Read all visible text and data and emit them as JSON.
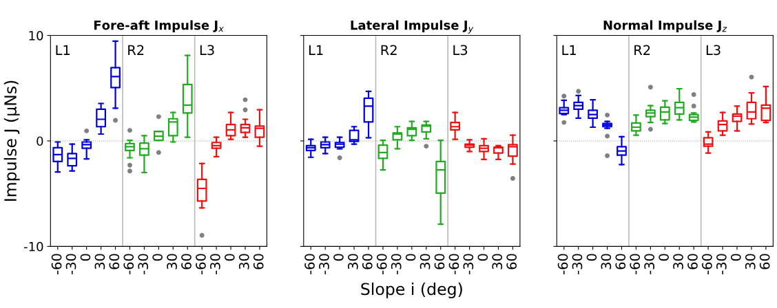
{
  "chart_data": [
    {
      "type": "box",
      "title": "Fore-aft Impulse J$_{x}$",
      "annotations": [
        "L1",
        "R2",
        "L3"
      ],
      "ylabel": "Impulse J (µNs)",
      "ylim": [
        -10,
        10
      ],
      "yticks": [
        -10,
        0,
        10
      ],
      "grid": false,
      "categories": [
        "-60",
        "-30",
        "0",
        "30",
        "60",
        "-60",
        "-30",
        "0",
        "30",
        "60",
        "-60",
        "-30",
        "0",
        "30",
        "60"
      ],
      "ref_lines": [
        {
          "axis": "y",
          "value": 0,
          "color": "#999999",
          "line_style": "dotted"
        }
      ],
      "series": [
        {
          "color": "#0000dd",
          "boxes": [
            {
              "low": -2.95,
              "q1": -1.95,
              "median": -1.3,
              "q3": -0.65,
              "high": -0.1
            },
            {
              "low": -2.85,
              "q1": -2.35,
              "median": -1.65,
              "q3": -1.2,
              "high": -0.3
            },
            {
              "low": -1.7,
              "q1": -0.7,
              "median": -0.35,
              "q3": -0.1,
              "high": 0.1,
              "outliers": [
                0.95
              ]
            },
            {
              "low": 0.65,
              "q1": 1.35,
              "median": 2.05,
              "q3": 3.0,
              "high": 3.55
            },
            {
              "low": 3.1,
              "q1": 5.05,
              "median": 6.1,
              "q3": 6.95,
              "high": 9.45,
              "outliers": [
                1.95
              ]
            },
            null,
            null,
            null,
            null,
            null,
            null,
            null,
            null,
            null,
            null
          ]
        },
        {
          "color": "#22aa22",
          "boxes": [
            null,
            null,
            null,
            null,
            null,
            {
              "low": -1.6,
              "q1": -0.9,
              "median": -0.55,
              "q3": -0.25,
              "high": 0.05,
              "outliers": [
                1.0,
                -2.3,
                -2.85
              ]
            },
            {
              "low": -3.0,
              "q1": -1.35,
              "median": -0.75,
              "q3": -0.2,
              "high": 0.5
            },
            {
              "low": 0.05,
              "q1": 0.05,
              "median": 0.45,
              "q3": 0.9,
              "high": 0.9,
              "outliers": [
                2.3,
                -1.1
              ]
            },
            {
              "low": -0.1,
              "q1": 0.5,
              "median": 1.8,
              "q3": 2.1,
              "high": 2.7
            },
            {
              "low": 0.35,
              "q1": 2.65,
              "median": 3.4,
              "q3": 5.35,
              "high": 8.1
            },
            null,
            null,
            null,
            null,
            null
          ]
        },
        {
          "color": "#ee1111",
          "boxes": [
            null,
            null,
            null,
            null,
            null,
            null,
            null,
            null,
            null,
            null,
            {
              "low": -6.35,
              "q1": -5.7,
              "median": -4.5,
              "q3": -3.65,
              "high": -2.15,
              "outliers": [
                -8.95
              ]
            },
            {
              "low": -1.5,
              "q1": -0.7,
              "median": -0.45,
              "q3": -0.15,
              "high": 0.35
            },
            {
              "low": 0.15,
              "q1": 0.5,
              "median": 1.05,
              "q3": 1.55,
              "high": 2.7
            },
            {
              "low": 0.35,
              "q1": 0.8,
              "median": 1.25,
              "q3": 1.55,
              "high": 2.05,
              "outliers": [
                2.95,
                3.9
              ]
            },
            {
              "low": -0.5,
              "q1": 0.35,
              "median": 1.2,
              "q3": 1.4,
              "high": 2.95
            }
          ]
        }
      ]
    },
    {
      "type": "box",
      "title": "Lateral Impulse J$_{y}$",
      "annotations": [
        "L1",
        "R2",
        "L3"
      ],
      "xlabel": "Slope i (deg)",
      "ylim": [
        -10,
        10
      ],
      "yticks": [
        -10,
        0,
        10
      ],
      "tick_labels": "x",
      "grid": false,
      "categories": [
        "-60",
        "-30",
        "0",
        "30",
        "60",
        "-60",
        "-30",
        "0",
        "30",
        "60",
        "-60",
        "-30",
        "0",
        "30",
        "60"
      ],
      "ref_lines": [
        {
          "axis": "y",
          "value": 0,
          "color": "#999999",
          "line_style": "dotted"
        }
      ],
      "series": [
        {
          "color": "#0000dd",
          "boxes": [
            {
              "low": -1.55,
              "q1": -0.9,
              "median": -0.65,
              "q3": -0.45,
              "high": 0.15
            },
            {
              "low": -1.2,
              "q1": -0.65,
              "median": -0.35,
              "q3": -0.1,
              "high": 0.35
            },
            {
              "low": -0.75,
              "q1": -0.6,
              "median": -0.3,
              "q3": -0.15,
              "high": 0.35,
              "outliers": [
                -1.6
              ]
            },
            {
              "low": -0.3,
              "q1": -0.05,
              "median": 0.1,
              "q3": 1.0,
              "high": 1.35
            },
            {
              "low": 0.3,
              "q1": 1.8,
              "median": 3.3,
              "q3": 4.05,
              "high": 4.7
            },
            null,
            null,
            null,
            null,
            null,
            null,
            null,
            null,
            null,
            null
          ]
        },
        {
          "color": "#22aa22",
          "boxes": [
            null,
            null,
            null,
            null,
            null,
            {
              "low": -2.75,
              "q1": -1.65,
              "median": -1.1,
              "q3": -0.4,
              "high": 0.05
            },
            {
              "low": -0.75,
              "q1": 0.1,
              "median": 0.65,
              "q3": 0.75,
              "high": 1.35
            },
            {
              "low": 0.05,
              "q1": 0.5,
              "median": 1.1,
              "q3": 1.25,
              "high": 1.85
            },
            {
              "low": 0.2,
              "q1": 0.85,
              "median": 1.4,
              "q3": 1.5,
              "high": 1.85,
              "outliers": [
                -0.5
              ]
            },
            {
              "low": -7.9,
              "q1": -4.95,
              "median": -2.75,
              "q3": -1.95,
              "high": 0.05
            },
            null,
            null,
            null,
            null,
            null
          ]
        },
        {
          "color": "#ee1111",
          "boxes": [
            null,
            null,
            null,
            null,
            null,
            null,
            null,
            null,
            null,
            null,
            {
              "low": 0.15,
              "q1": 1.05,
              "median": 1.35,
              "q3": 1.75,
              "high": 2.7
            },
            {
              "low": -1.0,
              "q1": -0.6,
              "median": -0.4,
              "q3": -0.3,
              "high": 0.1
            },
            {
              "low": -1.75,
              "q1": -1.0,
              "median": -0.7,
              "q3": -0.45,
              "high": 0.2
            },
            {
              "low": -1.75,
              "q1": -1.15,
              "median": -0.65,
              "q3": -0.6,
              "high": -0.45
            },
            {
              "low": -2.2,
              "q1": -1.45,
              "median": -0.55,
              "q3": -0.35,
              "high": 0.55,
              "outliers": [
                -3.55
              ]
            }
          ]
        }
      ]
    },
    {
      "type": "box",
      "title": "Normal Impulse J$_{z}$",
      "annotations": [
        "L1",
        "R2",
        "L3"
      ],
      "ylim": [
        -10,
        10
      ],
      "yticks": [
        -10,
        0,
        10
      ],
      "tick_labels": "x",
      "grid": false,
      "categories": [
        "-60",
        "-30",
        "0",
        "30",
        "60",
        "-60",
        "-30",
        "0",
        "30",
        "60",
        "-60",
        "-30",
        "0",
        "30",
        "60"
      ],
      "ref_lines": [
        {
          "axis": "y",
          "value": 0,
          "color": "#999999",
          "line_style": "dotted"
        }
      ],
      "series": [
        {
          "color": "#0000dd",
          "boxes": [
            {
              "low": 2.5,
              "q1": 2.6,
              "median": 2.9,
              "q3": 3.15,
              "high": 3.85,
              "outliers": [
                1.75,
                4.25
              ]
            },
            {
              "low": 2.15,
              "q1": 3.0,
              "median": 3.35,
              "q3": 3.65,
              "high": 4.3,
              "outliers": [
                4.7
              ]
            },
            {
              "low": 1.3,
              "q1": 2.15,
              "median": 2.5,
              "q3": 2.9,
              "high": 3.9
            },
            {
              "low": 1.2,
              "q1": 1.35,
              "median": 1.5,
              "q3": 1.65,
              "high": 1.85,
              "outliers": [
                2.45,
                0.45,
                -1.4
              ]
            },
            {
              "low": -2.25,
              "q1": -1.35,
              "median": -0.95,
              "q3": -0.55,
              "high": 0.4
            },
            null,
            null,
            null,
            null,
            null,
            null,
            null,
            null,
            null,
            null
          ]
        },
        {
          "color": "#22aa22",
          "boxes": [
            null,
            null,
            null,
            null,
            null,
            {
              "low": 0.55,
              "q1": 0.95,
              "median": 1.3,
              "q3": 1.7,
              "high": 2.45
            },
            {
              "low": 1.75,
              "q1": 2.3,
              "median": 2.65,
              "q3": 2.9,
              "high": 3.35,
              "outliers": [
                5.1,
                1.1
              ]
            },
            {
              "low": 1.65,
              "q1": 2.0,
              "median": 2.75,
              "q3": 3.2,
              "high": 3.8
            },
            {
              "low": 2.0,
              "q1": 2.55,
              "median": 3.15,
              "q3": 3.65,
              "high": 4.95
            },
            {
              "low": 1.8,
              "q1": 1.95,
              "median": 2.25,
              "q3": 2.5,
              "high": 2.65,
              "outliers": [
                4.4,
                3.3
              ]
            },
            null,
            null,
            null,
            null,
            null
          ]
        },
        {
          "color": "#ee1111",
          "boxes": [
            null,
            null,
            null,
            null,
            null,
            null,
            null,
            null,
            null,
            null,
            {
              "low": -1.15,
              "q1": -0.5,
              "median": -0.3,
              "q3": 0.3,
              "high": 0.85
            },
            {
              "low": 0.55,
              "q1": 0.95,
              "median": 1.55,
              "q3": 1.9,
              "high": 2.7
            },
            {
              "low": 0.95,
              "q1": 1.85,
              "median": 2.35,
              "q3": 2.55,
              "high": 3.3
            },
            {
              "low": 1.6,
              "q1": 2.1,
              "median": 2.75,
              "q3": 3.65,
              "high": 4.55,
              "outliers": [
                6.05
              ]
            },
            {
              "low": 1.75,
              "q1": 1.95,
              "median": 3.1,
              "q3": 3.4,
              "high": 5.15
            }
          ]
        }
      ]
    }
  ]
}
